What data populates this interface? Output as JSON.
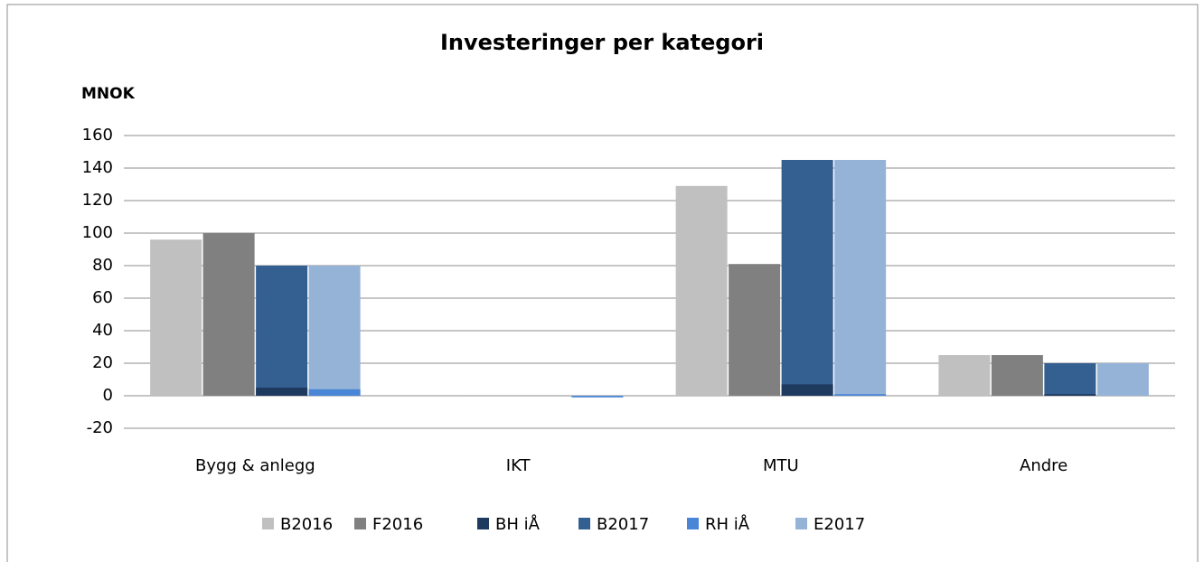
{
  "chart_data": {
    "type": "bar",
    "title": "Investeringer per kategori",
    "y_label": "MNOK",
    "categories": [
      "Bygg & anlegg",
      "IKT",
      "MTU",
      "Andre"
    ],
    "series": [
      {
        "name": "B2016",
        "color": "#c0c0c0",
        "values": [
          96,
          0,
          129,
          25
        ]
      },
      {
        "name": "F2016",
        "color": "#808080",
        "values": [
          100,
          0,
          81,
          25
        ]
      },
      {
        "name": "BH iÅ",
        "color": "#1f3a5f",
        "values": [
          5,
          0,
          7,
          1
        ]
      },
      {
        "name": "B2017",
        "color": "#335f91",
        "values": [
          80,
          0,
          145,
          20
        ]
      },
      {
        "name": "RH iÅ",
        "color": "#4a86d6",
        "values": [
          4,
          -1,
          1,
          0
        ]
      },
      {
        "name": "E2017",
        "color": "#95b3d7",
        "values": [
          80,
          0,
          145,
          20
        ]
      }
    ],
    "ylim": [
      -20,
      160
    ],
    "yticks": [
      -20,
      0,
      20,
      40,
      60,
      80,
      100,
      120,
      140,
      160
    ],
    "grid": true,
    "legend": "bottom"
  }
}
